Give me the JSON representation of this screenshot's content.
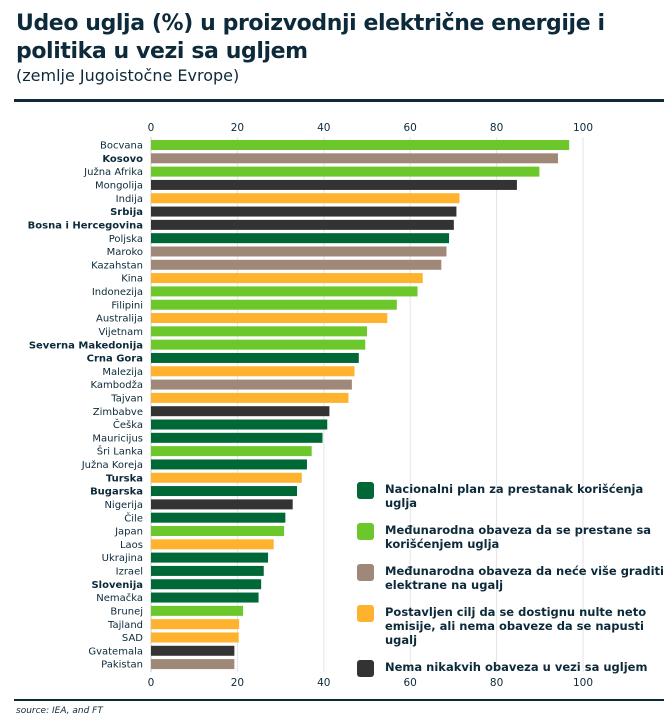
{
  "title": "Udeo uglja (%) u proizvodnji električne energije i politika u vezi sa ugljem",
  "subtitle": "(zemlje Jugoistočne Evrope)",
  "source": "source: IEA, and FT",
  "chart_data": {
    "type": "bar",
    "orientation": "horizontal",
    "xlim": [
      0,
      100
    ],
    "ticks": [
      0,
      20,
      40,
      60,
      80,
      100
    ],
    "grid": true,
    "legend_position": "right",
    "policies": [
      {
        "name": "Nacionalni plan za prestanak korišćenja uglja",
        "color": "#006837"
      },
      {
        "name": "Međunarodna obaveza da se prestane sa korišćenjem uglja",
        "color": "#6cc72b"
      },
      {
        "name": "Međunarodna obaveza da neće više graditi elektrane na ugalj",
        "color": "#a08878"
      },
      {
        "name": "Postavljen cilj da se dostignu nulte neto emisije, ali nema obaveze da se napusti ugalj",
        "color": "#ffb22d"
      },
      {
        "name": "Nema nikakvih obaveza u vezi sa ugljem",
        "color": "#333333"
      }
    ],
    "rows": [
      {
        "country": "Bocvana",
        "value": 96.8,
        "policy": 1,
        "highlight": false
      },
      {
        "country": "Kosovo",
        "value": 94.2,
        "policy": 2,
        "highlight": true
      },
      {
        "country": "Južna Afrika",
        "value": 89.9,
        "policy": 1,
        "highlight": false
      },
      {
        "country": "Mongolija",
        "value": 84.7,
        "policy": 4,
        "highlight": false
      },
      {
        "country": "Indija",
        "value": 71.4,
        "policy": 3,
        "highlight": false
      },
      {
        "country": "Srbija",
        "value": 70.7,
        "policy": 4,
        "highlight": true
      },
      {
        "country": "Bosna i Hercegovina",
        "value": 70.1,
        "policy": 4,
        "highlight": true
      },
      {
        "country": "Poljska",
        "value": 69.0,
        "policy": 0,
        "highlight": false
      },
      {
        "country": "Maroko",
        "value": 68.4,
        "policy": 2,
        "highlight": false
      },
      {
        "country": "Kazahstan",
        "value": 67.2,
        "policy": 2,
        "highlight": false
      },
      {
        "country": "Kina",
        "value": 62.9,
        "policy": 3,
        "highlight": false
      },
      {
        "country": "Indonezija",
        "value": 61.7,
        "policy": 1,
        "highlight": false
      },
      {
        "country": "Filipini",
        "value": 56.9,
        "policy": 1,
        "highlight": false
      },
      {
        "country": "Australija",
        "value": 54.7,
        "policy": 3,
        "highlight": false
      },
      {
        "country": "Vijetnam",
        "value": 50.0,
        "policy": 1,
        "highlight": false
      },
      {
        "country": "Severna Makedonija",
        "value": 49.6,
        "policy": 1,
        "highlight": true
      },
      {
        "country": "Crna Gora",
        "value": 48.1,
        "policy": 0,
        "highlight": true
      },
      {
        "country": "Malezija",
        "value": 47.1,
        "policy": 3,
        "highlight": false
      },
      {
        "country": "Kambodža",
        "value": 46.5,
        "policy": 2,
        "highlight": false
      },
      {
        "country": "Tajvan",
        "value": 45.7,
        "policy": 3,
        "highlight": false
      },
      {
        "country": "Zimbabve",
        "value": 41.3,
        "policy": 4,
        "highlight": false
      },
      {
        "country": "Češka",
        "value": 40.8,
        "policy": 0,
        "highlight": false
      },
      {
        "country": "Mauricijus",
        "value": 39.7,
        "policy": 0,
        "highlight": false
      },
      {
        "country": "Šri Lanka",
        "value": 37.2,
        "policy": 1,
        "highlight": false
      },
      {
        "country": "Južna Koreja",
        "value": 36.1,
        "policy": 0,
        "highlight": false
      },
      {
        "country": "Turska",
        "value": 34.9,
        "policy": 3,
        "highlight": true
      },
      {
        "country": "Bugarska",
        "value": 33.8,
        "policy": 0,
        "highlight": true
      },
      {
        "country": "Nigerija",
        "value": 32.8,
        "policy": 4,
        "highlight": false
      },
      {
        "country": "Čile",
        "value": 31.1,
        "policy": 0,
        "highlight": false
      },
      {
        "country": "Japan",
        "value": 30.8,
        "policy": 1,
        "highlight": false
      },
      {
        "country": "Laos",
        "value": 28.4,
        "policy": 3,
        "highlight": false
      },
      {
        "country": "Ukrajina",
        "value": 27.1,
        "policy": 0,
        "highlight": false
      },
      {
        "country": "Izrael",
        "value": 26.1,
        "policy": 0,
        "highlight": false
      },
      {
        "country": "Slovenija",
        "value": 25.5,
        "policy": 0,
        "highlight": true
      },
      {
        "country": "Nemačka",
        "value": 24.9,
        "policy": 0,
        "highlight": false
      },
      {
        "country": "Brunej",
        "value": 21.3,
        "policy": 1,
        "highlight": false
      },
      {
        "country": "Tajland",
        "value": 20.4,
        "policy": 3,
        "highlight": false
      },
      {
        "country": "SAD",
        "value": 20.3,
        "policy": 3,
        "highlight": false
      },
      {
        "country": "Gvatemala",
        "value": 19.3,
        "policy": 4,
        "highlight": false
      },
      {
        "country": "Pakistan",
        "value": 19.3,
        "policy": 2,
        "highlight": false
      }
    ]
  }
}
